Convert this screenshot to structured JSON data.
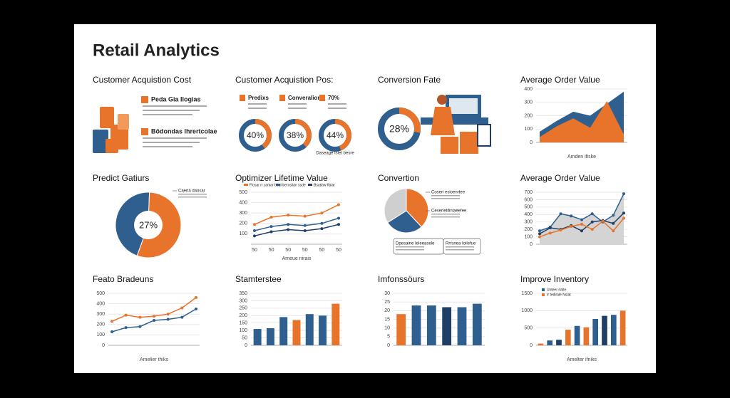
{
  "title": "Retail Analytics",
  "chart_data": [
    {
      "type": "infographic",
      "title": "Customer Acquistion Cost",
      "items": [
        "Peda Gia Ilogias",
        "Bödondas Ihrertcolae"
      ]
    },
    {
      "type": "donut",
      "title": "Customer Acquistion Pos:",
      "categories": [
        "Predixs",
        "Converalione",
        "70%"
      ],
      "values": [
        40,
        38,
        44
      ],
      "value_labels": [
        "40%",
        "38%",
        "44%"
      ],
      "color": "#e8732a",
      "track_color": "#2e5f8f",
      "annotation": "Daseage Islet besre"
    },
    {
      "type": "donut",
      "title": "Conversion Fate",
      "values": [
        28
      ],
      "value_labels": [
        "28%"
      ],
      "color": "#e8732a",
      "track_color": "#2e5f8f"
    },
    {
      "type": "area",
      "title": "Average Order Value",
      "xlabel": "Amden ifiske",
      "ylim": [
        0,
        400
      ],
      "yticks": [
        0,
        100,
        200,
        300,
        400
      ],
      "grid": true,
      "series": [
        {
          "color": "#2e5f8f",
          "values": [
            80,
            160,
            230,
            200,
            290,
            380
          ]
        },
        {
          "color": "#e8732a",
          "values": [
            40,
            120,
            180,
            110,
            310,
            60
          ]
        }
      ]
    },
    {
      "type": "pie",
      "title": "Predict Gatiurs",
      "values": [
        45,
        55
      ],
      "colors": [
        "#2e5f8f",
        "#e8732a"
      ],
      "center_label": "27%",
      "annotations": [
        "Caeria daosar"
      ]
    },
    {
      "type": "line",
      "title": "Optimizer Lifetime Value",
      "xlabel": "Ameue nirais",
      "categories": [
        "50",
        "50",
        "50",
        "50",
        "50",
        "50"
      ],
      "ylim": [
        0,
        500
      ],
      "yticks": [
        100,
        200,
        300,
        400,
        500
      ],
      "grid": true,
      "series": [
        {
          "name": "Fiosar rt cantar bbal",
          "color": "#e8732a",
          "values": [
            190,
            260,
            280,
            270,
            300,
            380
          ]
        },
        {
          "name": "Iberosiian ssde",
          "color": "#2e5f8f",
          "values": [
            130,
            170,
            190,
            180,
            200,
            250
          ]
        },
        {
          "name": "Bsatlaw ffaiar",
          "color": "#1f3f66",
          "values": [
            80,
            120,
            140,
            130,
            150,
            190
          ]
        }
      ]
    },
    {
      "type": "pie",
      "title": "Convertion",
      "values": [
        38,
        28,
        34
      ],
      "colors": [
        "#e8732a",
        "#2e5f8f",
        "#cfcfcf"
      ],
      "annotations": [
        "Coseri esioenrtee",
        "Ceserietiliniaeefee",
        "Dpesaine Ieleeasele",
        "Rrrsnea Ioilefue"
      ]
    },
    {
      "type": "line",
      "title": "Average Order Value",
      "ylim": [
        0,
        700
      ],
      "yticks": [
        0,
        100,
        200,
        300,
        400,
        500,
        600,
        700
      ],
      "grid": true,
      "series": [
        {
          "color": "#2e5f8f",
          "fill": "#d4d4d4",
          "values": [
            180,
            230,
            410,
            380,
            330,
            410,
            300,
            390,
            680
          ]
        },
        {
          "color": "#1f3f66",
          "values": [
            140,
            220,
            200,
            250,
            180,
            300,
            320,
            280,
            420
          ]
        },
        {
          "color": "#e8732a",
          "values": [
            100,
            150,
            190,
            240,
            270,
            200,
            310,
            180,
            350
          ]
        }
      ]
    },
    {
      "type": "line",
      "title": "Feato Bradeuns",
      "xlabel": "Amelier thiks",
      "ylim": [
        0,
        500
      ],
      "yticks": [
        0,
        100,
        200,
        300,
        400,
        500
      ],
      "grid": true,
      "series": [
        {
          "color": "#e8732a",
          "values": [
            230,
            290,
            270,
            280,
            300,
            360,
            460
          ]
        },
        {
          "color": "#2e5f8f",
          "values": [
            130,
            170,
            180,
            240,
            250,
            270,
            350
          ]
        }
      ]
    },
    {
      "type": "bar",
      "title": "Stamterstee",
      "ylim": [
        0,
        350
      ],
      "yticks": [
        0,
        50,
        100,
        150,
        200,
        250,
        300,
        350
      ],
      "grid": true,
      "values": [
        110,
        115,
        190,
        170,
        210,
        200,
        280
      ],
      "colors": [
        "#2e5f8f",
        "#2e5f8f",
        "#2e5f8f",
        "#e8732a",
        "#2e5f8f",
        "#2e5f8f",
        "#e8732a"
      ]
    },
    {
      "type": "bar",
      "title": "Imfonssöurs",
      "ylim": [
        0,
        30
      ],
      "yticks": [
        0,
        5,
        10,
        15,
        20,
        25,
        30
      ],
      "grid": true,
      "values": [
        18,
        23,
        23,
        22,
        22,
        24
      ],
      "colors": [
        "#e8732a",
        "#2e5f8f",
        "#2e5f8f",
        "#1f3f66",
        "#2e5f8f",
        "#2e5f8f"
      ]
    },
    {
      "type": "bar",
      "title": "Improve Inventory",
      "xlabel": "Amelter ifniks",
      "ylim": [
        0,
        1500
      ],
      "yticks": [
        0,
        500,
        1000,
        1500
      ],
      "grid": true,
      "values": [
        50,
        140,
        160,
        450,
        560,
        520,
        760,
        850,
        880,
        1000
      ],
      "colors": [
        "#e8732a",
        "#2e5f8f",
        "#1f3f66",
        "#e8732a",
        "#2e5f8f",
        "#e8732a",
        "#2e5f8f",
        "#1f3f66",
        "#2e5f8f",
        "#e8732a"
      ],
      "legend": [
        {
          "name": "Uoteer rlalte",
          "color": "#2e5f8f"
        },
        {
          "name": "Ir tedirale Nsiat",
          "color": "#e8732a"
        }
      ]
    }
  ]
}
